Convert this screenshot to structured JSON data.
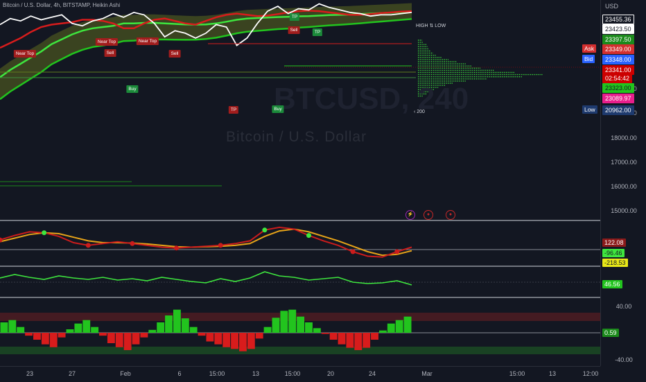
{
  "header": {
    "symbol_title": "Bitcoin / U.S. Dollar, 4h, BITSTAMP, Heikin Ashi"
  },
  "watermark": {
    "ticker": "BTCUSD, 240",
    "name": "Bitcoin / U.S. Dollar"
  },
  "volume_profile": {
    "title": "HIGH ⇅ LOW",
    "footer": "‹ 200"
  },
  "price_axis": {
    "currency": "USD",
    "ticks": [
      "20000.00",
      "19000.00",
      "18000.00",
      "17000.00",
      "16000.00",
      "15000.00"
    ],
    "tags": [
      {
        "text": "23455.36",
        "bg": "#131722",
        "fg": "#ffffff",
        "border": "#ffffff"
      },
      {
        "text": "23423.50",
        "bg": "#ffffff",
        "fg": "#131722",
        "border": "#ffffff"
      },
      {
        "text": "23397.50",
        "bg": "#1b8a1b",
        "fg": "#ffffff",
        "border": "#1b8a1b"
      },
      {
        "text": "23349.00",
        "bg": "#d32f2f",
        "fg": "#ffffff",
        "border": "#d32f2f"
      },
      {
        "text": "23348.00",
        "bg": "#2962ff",
        "fg": "#ffffff",
        "border": "#2962ff"
      },
      {
        "text": "23341.00",
        "bg": "#cc0000",
        "fg": "#ffffff",
        "border": "#cc0000"
      },
      {
        "text": "02:54:42",
        "bg": "#cc0000",
        "fg": "#ffffff",
        "border": "#cc0000"
      },
      {
        "text": "23323.00",
        "bg": "#22c41e",
        "fg": "#131722",
        "border": "#22c41e"
      },
      {
        "text": "23089.97",
        "bg": "#e91e8c",
        "fg": "#ffffff",
        "border": "#e91e8c"
      },
      {
        "text": "20962.00",
        "bg": "#1e3a6e",
        "fg": "#ffffff",
        "border": "#1e3a6e"
      }
    ],
    "side_tags": [
      {
        "text": "Ask",
        "bg": "#d32f2f"
      },
      {
        "text": "Bid",
        "bg": "#2962ff"
      },
      {
        "text": "Low",
        "bg": "#1e3a6e"
      }
    ],
    "osc1_tags": [
      {
        "text": "122.08",
        "bg": "#8b1a1a",
        "fg": "#ffffff"
      },
      {
        "text": "-96.46",
        "bg": "#3ee63e",
        "fg": "#131722"
      },
      {
        "text": "-218.53",
        "bg": "#e8e818",
        "fg": "#131722"
      }
    ],
    "osc2_tags": [
      {
        "text": "46.56",
        "bg": "#22c41e",
        "fg": "#ffffff"
      }
    ],
    "osc3_ticks": [
      "40.00",
      "-40.00"
    ],
    "osc3_tags": [
      {
        "text": "0.59",
        "bg": "#1b8a1b",
        "fg": "#ffffff"
      }
    ]
  },
  "time_axis": {
    "labels": [
      "23",
      "27",
      "Feb",
      "6",
      "15:00",
      "13",
      "15:00",
      "20",
      "24",
      "Mar",
      "15:00",
      "13",
      "12:00"
    ]
  },
  "signals": [
    {
      "text": "Near Top",
      "kind": "red"
    },
    {
      "text": "Near Top",
      "kind": "red"
    },
    {
      "text": "Near Top",
      "kind": "red"
    },
    {
      "text": "Sell",
      "kind": "red"
    },
    {
      "text": "Sell",
      "kind": "red"
    },
    {
      "text": "Sell",
      "kind": "red"
    },
    {
      "text": "TP",
      "kind": "green"
    },
    {
      "text": "TP",
      "kind": "green"
    },
    {
      "text": "TP",
      "kind": "red"
    },
    {
      "text": "Buy",
      "kind": "green"
    },
    {
      "text": "Buy",
      "kind": "green"
    }
  ],
  "events": [
    {
      "icon": "lightning-icon",
      "color": "#9c27b0",
      "glyph": "⚡"
    },
    {
      "icon": "flag-us-icon",
      "color": "#c62828",
      "glyph": "●"
    },
    {
      "icon": "flag-us-icon",
      "color": "#c62828",
      "glyph": "●"
    }
  ],
  "chart_data": {
    "type": "line",
    "title": "Bitcoin / U.S. Dollar, 4h, BITSTAMP, Heikin Ashi",
    "ylabel": "USD",
    "x_tick_labels": [
      "23",
      "27",
      "Feb",
      "6",
      "15:00",
      "13",
      "15:00",
      "20",
      "24",
      "Mar",
      "15:00",
      "13",
      "12:00"
    ],
    "price_ylim": [
      14700,
      23600
    ],
    "series": [
      {
        "values": [
          22650,
          22900,
          22800,
          23000,
          22850,
          22950,
          23050,
          22700,
          22600,
          22800,
          22900,
          23100,
          22950,
          23150,
          23050,
          22700,
          22150,
          22400,
          22300,
          22100,
          22300,
          22650,
          22550,
          21800,
          22100,
          22700,
          23200,
          23400,
          23100,
          23300,
          23250,
          23500,
          23350,
          23250,
          23150,
          23100,
          23000,
          23050,
          23050,
          23100,
          23150
        ]
      },
      {
        "values": [
          20500,
          20800,
          21050,
          21300,
          21550,
          21850,
          22050,
          22250,
          22400,
          22500,
          22550,
          22600,
          22700,
          22700,
          22720,
          22720,
          22700,
          22680,
          22660,
          22650,
          22660,
          22700,
          22770,
          22850,
          22900,
          22920,
          22940,
          22960,
          22970,
          22990,
          23000,
          23020,
          23040,
          23050,
          23060,
          23080,
          23100,
          23120,
          23140,
          23160,
          23180
        ]
      },
      {
        "values": [
          21700,
          21900,
          22100,
          22350,
          22550,
          22650,
          22700,
          22750,
          22850,
          22850,
          22800,
          22700,
          22500,
          22500,
          22700,
          22850,
          22900,
          22800,
          22700,
          22650,
          22800,
          22950,
          23050,
          23100,
          23050,
          23000,
          23020,
          23080,
          23150,
          23200,
          23220,
          23200,
          23150,
          23100,
          23050,
          23050,
          23080,
          23120,
          23150,
          23180,
          23200
        ]
      }
    ],
    "oscillator_1": {
      "ylim": [
        -250,
        150
      ],
      "series": [
        {
          "values": [
            -20,
            30,
            70,
            60,
            20,
            -50,
            -80,
            -60,
            -40,
            -60,
            -80,
            -100,
            -110,
            -100,
            -90,
            -80,
            -60,
            -30,
            90,
            120,
            100,
            30,
            -30,
            -80,
            -150,
            -200,
            -210,
            -150,
            -100
          ]
        },
        {
          "values": [
            -40,
            0,
            40,
            60,
            50,
            10,
            -30,
            -50,
            -50,
            -55,
            -65,
            -80,
            -95,
            -100,
            -95,
            -90,
            -80,
            -60,
            20,
            80,
            100,
            70,
            20,
            -30,
            -90,
            -150,
            -190,
            -180,
            -140
          ]
        }
      ]
    },
    "oscillator_2": {
      "ylim": [
        30,
        70
      ],
      "series": [
        {
          "values": [
            57,
            62,
            58,
            55,
            60,
            57,
            55,
            58,
            54,
            56,
            53,
            58,
            55,
            52,
            50,
            56,
            52,
            57,
            66,
            60,
            58,
            54,
            56,
            58,
            51,
            49,
            50,
            53,
            47
          ]
        }
      ]
    },
    "oscillator_3": {
      "ylim": [
        -48,
        48
      ],
      "bars": [
        18,
        22,
        10,
        -5,
        -12,
        -20,
        -25,
        -8,
        6,
        16,
        22,
        10,
        -5,
        -18,
        -25,
        -30,
        -20,
        -8,
        5,
        18,
        30,
        40,
        25,
        10,
        -5,
        -15,
        -20,
        -25,
        -28,
        -32,
        -28,
        -10,
        10,
        26,
        38,
        40,
        28,
        18,
        8,
        -2,
        -12,
        -20,
        -26,
        -30,
        -26,
        -12,
        4,
        16,
        22,
        28
      ]
    }
  }
}
